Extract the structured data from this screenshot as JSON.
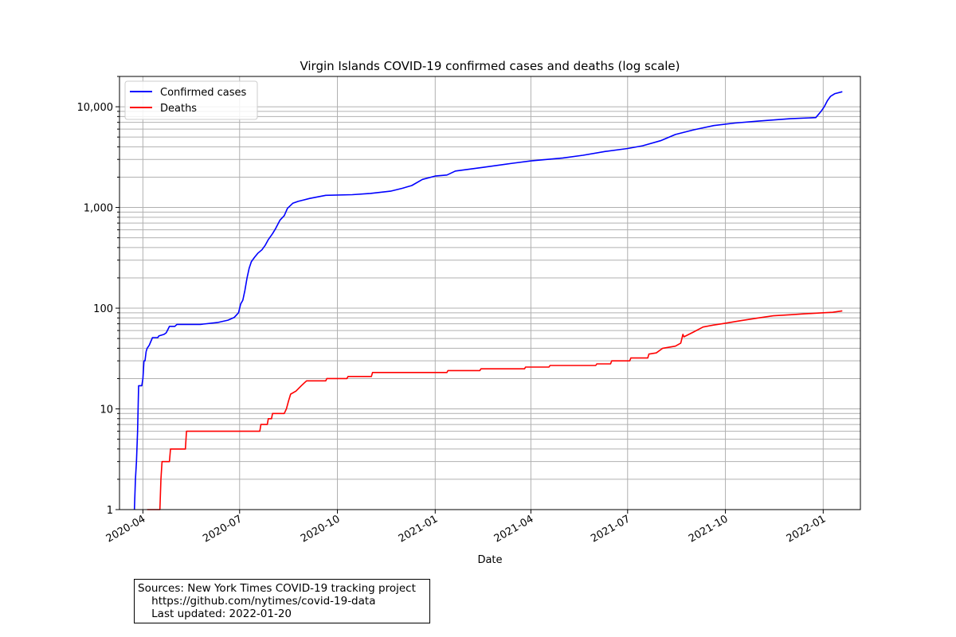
{
  "chart_data": {
    "type": "line",
    "title": "Virgin Islands COVID-19 confirmed cases and deaths (log scale)",
    "xlabel": "Date",
    "ylabel": "",
    "yscale": "log",
    "xlim": [
      "2020-03-10",
      "2022-02-05"
    ],
    "ylim": [
      1,
      20000
    ],
    "grid": true,
    "legend": "top-left",
    "x_ticks": [
      "2020-04",
      "2020-07",
      "2020-10",
      "2021-01",
      "2021-04",
      "2021-07",
      "2021-10",
      "2022-01"
    ],
    "y_ticks": [
      "1",
      "10",
      "100",
      "1,000",
      "10,000"
    ],
    "series": [
      {
        "name": "Confirmed cases",
        "color": "#0000ff",
        "points": [
          [
            "2020-03-24",
            1
          ],
          [
            "2020-03-25",
            2
          ],
          [
            "2020-03-26",
            3
          ],
          [
            "2020-03-27",
            6
          ],
          [
            "2020-03-28",
            17
          ],
          [
            "2020-03-31",
            17
          ],
          [
            "2020-04-01",
            20
          ],
          [
            "2020-04-02",
            30
          ],
          [
            "2020-04-03",
            30
          ],
          [
            "2020-04-04",
            37
          ],
          [
            "2020-04-05",
            40
          ],
          [
            "2020-04-07",
            43
          ],
          [
            "2020-04-10",
            51
          ],
          [
            "2020-04-15",
            51
          ],
          [
            "2020-04-16",
            53
          ],
          [
            "2020-04-21",
            55
          ],
          [
            "2020-04-23",
            57
          ],
          [
            "2020-04-26",
            66
          ],
          [
            "2020-05-01",
            66
          ],
          [
            "2020-05-03",
            69
          ],
          [
            "2020-05-25",
            69
          ],
          [
            "2020-06-10",
            72
          ],
          [
            "2020-06-20",
            76
          ],
          [
            "2020-06-26",
            81
          ],
          [
            "2020-06-30",
            90
          ],
          [
            "2020-07-02",
            110
          ],
          [
            "2020-07-04",
            120
          ],
          [
            "2020-07-06",
            150
          ],
          [
            "2020-07-08",
            200
          ],
          [
            "2020-07-10",
            250
          ],
          [
            "2020-07-12",
            290
          ],
          [
            "2020-07-15",
            320
          ],
          [
            "2020-07-18",
            350
          ],
          [
            "2020-07-22",
            380
          ],
          [
            "2020-07-25",
            420
          ],
          [
            "2020-07-28",
            480
          ],
          [
            "2020-08-01",
            550
          ],
          [
            "2020-08-04",
            620
          ],
          [
            "2020-08-08",
            750
          ],
          [
            "2020-08-12",
            830
          ],
          [
            "2020-08-15",
            980
          ],
          [
            "2020-08-20",
            1100
          ],
          [
            "2020-08-25",
            1150
          ],
          [
            "2020-09-05",
            1230
          ],
          [
            "2020-09-20",
            1320
          ],
          [
            "2020-10-15",
            1340
          ],
          [
            "2020-11-01",
            1380
          ],
          [
            "2020-11-20",
            1450
          ],
          [
            "2020-12-01",
            1550
          ],
          [
            "2020-12-10",
            1650
          ],
          [
            "2020-12-20",
            1900
          ],
          [
            "2021-01-01",
            2050
          ],
          [
            "2021-01-12",
            2100
          ],
          [
            "2021-01-20",
            2300
          ],
          [
            "2021-02-15",
            2500
          ],
          [
            "2021-03-15",
            2750
          ],
          [
            "2021-04-01",
            2900
          ],
          [
            "2021-05-01",
            3100
          ],
          [
            "2021-05-20",
            3300
          ],
          [
            "2021-06-10",
            3600
          ],
          [
            "2021-07-01",
            3850
          ],
          [
            "2021-07-15",
            4100
          ],
          [
            "2021-08-01",
            4600
          ],
          [
            "2021-08-15",
            5300
          ],
          [
            "2021-09-01",
            5900
          ],
          [
            "2021-09-20",
            6500
          ],
          [
            "2021-10-10",
            6900
          ],
          [
            "2021-11-01",
            7200
          ],
          [
            "2021-12-01",
            7600
          ],
          [
            "2021-12-25",
            7800
          ],
          [
            "2021-12-30",
            9000
          ],
          [
            "2022-01-02",
            10000
          ],
          [
            "2022-01-05",
            11500
          ],
          [
            "2022-01-08",
            12700
          ],
          [
            "2022-01-12",
            13500
          ],
          [
            "2022-01-19",
            14100
          ]
        ]
      },
      {
        "name": "Deaths",
        "color": "#ff0000",
        "points": [
          [
            "2020-04-05",
            1
          ],
          [
            "2020-04-17",
            1
          ],
          [
            "2020-04-18",
            2
          ],
          [
            "2020-04-19",
            3
          ],
          [
            "2020-04-26",
            3
          ],
          [
            "2020-04-27",
            4
          ],
          [
            "2020-05-11",
            4
          ],
          [
            "2020-05-12",
            6
          ],
          [
            "2020-07-20",
            6
          ],
          [
            "2020-07-21",
            7
          ],
          [
            "2020-07-27",
            7
          ],
          [
            "2020-07-28",
            8
          ],
          [
            "2020-07-31",
            8
          ],
          [
            "2020-08-01",
            9
          ],
          [
            "2020-08-12",
            9
          ],
          [
            "2020-08-14",
            10
          ],
          [
            "2020-08-16",
            12
          ],
          [
            "2020-08-18",
            14
          ],
          [
            "2020-08-23",
            15
          ],
          [
            "2020-08-28",
            17
          ],
          [
            "2020-09-02",
            19
          ],
          [
            "2020-09-20",
            19
          ],
          [
            "2020-09-21",
            20
          ],
          [
            "2020-10-10",
            20
          ],
          [
            "2020-10-11",
            21
          ],
          [
            "2020-11-02",
            21
          ],
          [
            "2020-11-03",
            23
          ],
          [
            "2021-01-12",
            23
          ],
          [
            "2021-01-13",
            24
          ],
          [
            "2021-02-12",
            24
          ],
          [
            "2021-02-13",
            25
          ],
          [
            "2021-03-26",
            25
          ],
          [
            "2021-03-27",
            26
          ],
          [
            "2021-04-18",
            26
          ],
          [
            "2021-04-19",
            27
          ],
          [
            "2021-06-01",
            27
          ],
          [
            "2021-06-02",
            28
          ],
          [
            "2021-06-15",
            28
          ],
          [
            "2021-06-16",
            30
          ],
          [
            "2021-07-03",
            30
          ],
          [
            "2021-07-04",
            32
          ],
          [
            "2021-07-20",
            32
          ],
          [
            "2021-07-21",
            35
          ],
          [
            "2021-07-28",
            36
          ],
          [
            "2021-08-03",
            40
          ],
          [
            "2021-08-15",
            42
          ],
          [
            "2021-08-20",
            45
          ],
          [
            "2021-08-22",
            55
          ],
          [
            "2021-08-23",
            52
          ],
          [
            "2021-09-01",
            58
          ],
          [
            "2021-09-10",
            65
          ],
          [
            "2021-09-20",
            68
          ],
          [
            "2021-10-01",
            71
          ],
          [
            "2021-10-15",
            75
          ],
          [
            "2021-11-01",
            80
          ],
          [
            "2021-11-15",
            84
          ],
          [
            "2021-12-01",
            86
          ],
          [
            "2021-12-15",
            88
          ],
          [
            "2022-01-01",
            90
          ],
          [
            "2022-01-10",
            91
          ],
          [
            "2022-01-19",
            94
          ]
        ]
      }
    ]
  },
  "sources": {
    "line1": "Sources: New York Times COVID-19 tracking project",
    "line2": "    https://github.com/nytimes/covid-19-data",
    "line3": "    Last updated: 2022-01-20"
  }
}
